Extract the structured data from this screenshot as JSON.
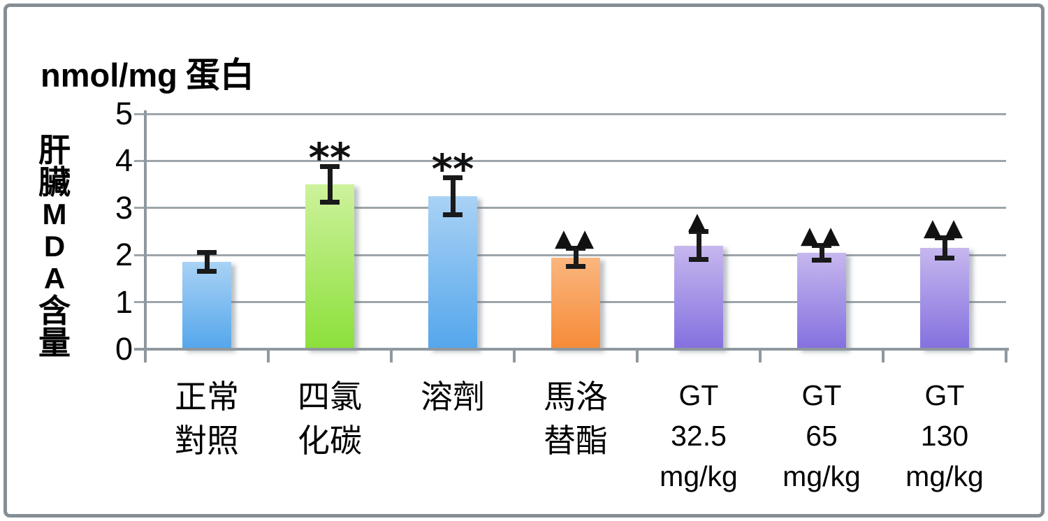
{
  "chart_data": {
    "type": "bar",
    "title": "nmol/mg 蛋白",
    "title_parts": {
      "unit": "nmol/mg",
      "cjk": "蛋白"
    },
    "ylabel": "肝臟MDA含量",
    "ylabel_chars": [
      {
        "ch": "肝",
        "style": "cjk"
      },
      {
        "ch": "臟",
        "style": "cjk"
      },
      {
        "ch": "M",
        "style": "latin"
      },
      {
        "ch": "D",
        "style": "latin"
      },
      {
        "ch": "A",
        "style": "latin"
      },
      {
        "ch": "含",
        "style": "cjk"
      },
      {
        "ch": "量",
        "style": "cjk"
      }
    ],
    "ylim": [
      0,
      5
    ],
    "yticks": [
      5,
      4,
      3,
      2,
      1,
      0
    ],
    "grid": true,
    "legend_position": "none",
    "categories": [
      {
        "label": "正常對照",
        "lines": [
          "正常",
          "對照"
        ],
        "style": "cjk"
      },
      {
        "label": "四氯化碳",
        "lines": [
          "四氯",
          "化碳"
        ],
        "style": "cjk"
      },
      {
        "label": "溶劑",
        "lines": [
          "溶劑"
        ],
        "style": "cjk"
      },
      {
        "label": "馬洛替酯",
        "lines": [
          "馬洛",
          "替酯"
        ],
        "style": "cjk"
      },
      {
        "label": "GT 32.5 mg/kg",
        "lines": [
          "GT",
          "32.5",
          "mg/kg"
        ],
        "style": "latin"
      },
      {
        "label": "GT 65 mg/kg",
        "lines": [
          "GT",
          "65",
          "mg/kg"
        ],
        "style": "latin"
      },
      {
        "label": "GT 130 mg/kg",
        "lines": [
          "GT",
          "130",
          "mg/kg"
        ],
        "style": "latin"
      }
    ],
    "values": [
      1.85,
      3.5,
      3.25,
      1.95,
      2.2,
      2.05,
      2.15
    ],
    "errors": [
      0.25,
      0.43,
      0.45,
      0.25,
      0.35,
      0.21,
      0.27
    ],
    "annotations": [
      "",
      "**",
      "**",
      "▲▲",
      "▲",
      "▲▲",
      "▲▲"
    ],
    "bar_colors": [
      {
        "top": "#A9D2F5",
        "bottom": "#54A6EC"
      },
      {
        "top": "#CDF29C",
        "bottom": "#8BE03A"
      },
      {
        "top": "#A9D2F5",
        "bottom": "#54A6EC"
      },
      {
        "top": "#FBB67F",
        "bottom": "#F68B38"
      },
      {
        "top": "#C6B7EE",
        "bottom": "#8470DF"
      },
      {
        "top": "#C6B7EE",
        "bottom": "#8470DF"
      },
      {
        "top": "#C6B7EE",
        "bottom": "#8470DF"
      }
    ],
    "colors": {
      "grid": "#9DA5AA",
      "axis": "#8F989E",
      "frame_border": "#858E94",
      "error_bar": "#1A1A1A",
      "text": "#000000",
      "background": "#FFFFFF"
    }
  }
}
